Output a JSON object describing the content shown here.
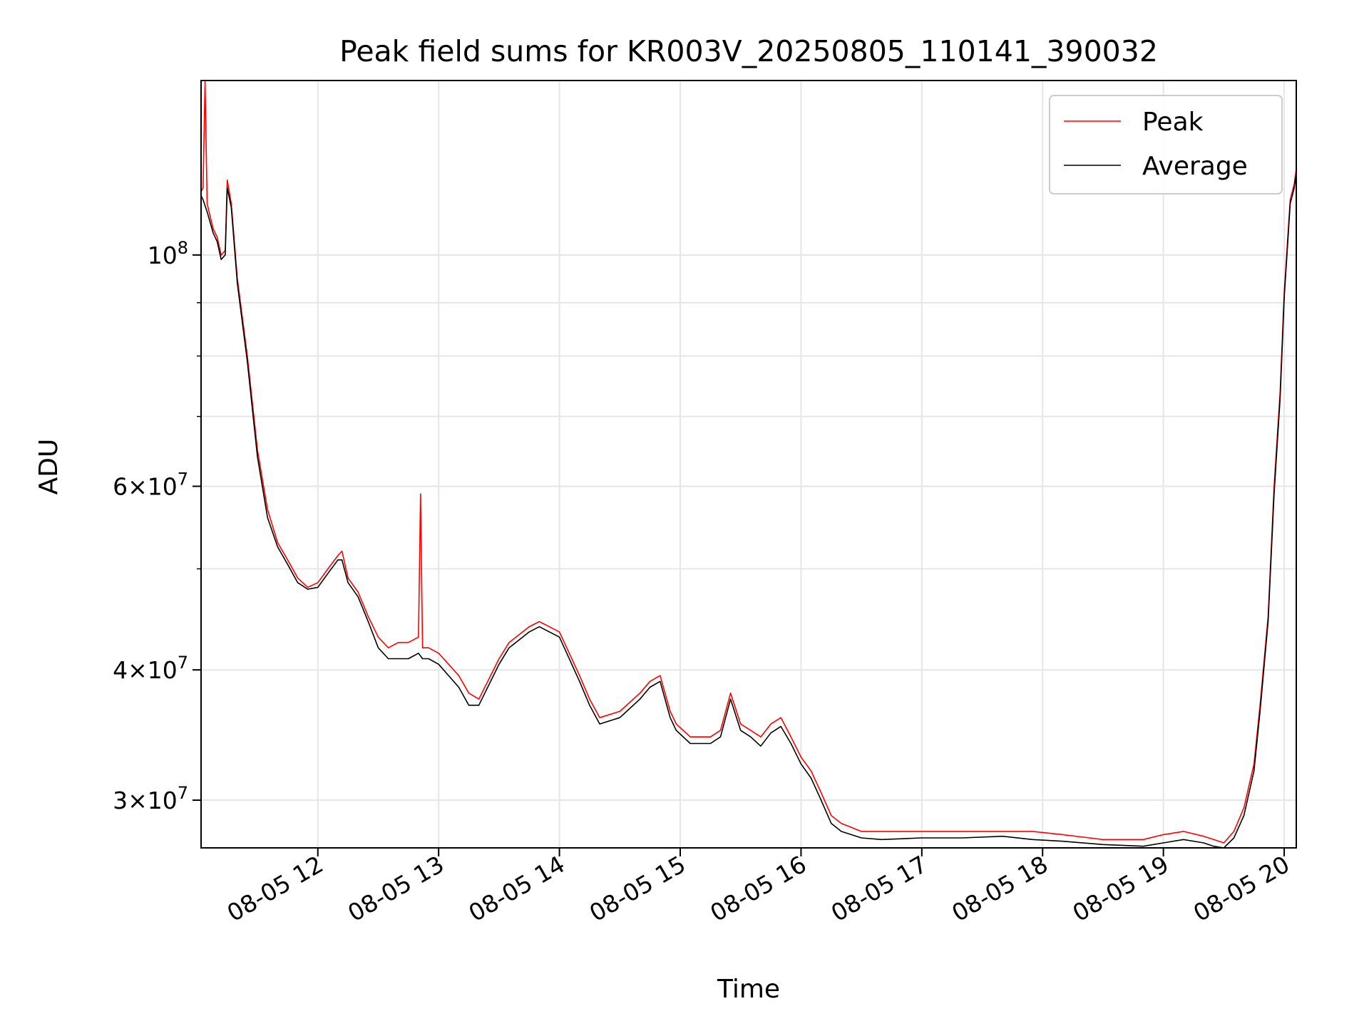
{
  "chart_data": {
    "type": "line",
    "title": "Peak field sums for KR003V_20250805_110141_390032",
    "xlabel": "Time",
    "ylabel": "ADU",
    "yscale": "log",
    "xlim": [
      "2025-08-05 11:02",
      "2025-08-05 20:06"
    ],
    "ylim": [
      27000000,
      147000000
    ],
    "grid": true,
    "legend_position": "top-right",
    "x_ticks": [
      "08-05 12",
      "08-05 13",
      "08-05 14",
      "08-05 15",
      "08-05 16",
      "08-05 17",
      "08-05 18",
      "08-05 19",
      "08-05 20"
    ],
    "y_ticks": [
      {
        "base": "10",
        "exp": "8",
        "value": 100000000
      },
      {
        "coef": "6",
        "base": "10",
        "exp": "7",
        "value": 60000000
      },
      {
        "coef": "4",
        "base": "10",
        "exp": "7",
        "value": 40000000
      },
      {
        "coef": "3",
        "base": "10",
        "exp": "7",
        "value": 30000000
      }
    ],
    "series": [
      {
        "name": "Peak",
        "color": "#ff0000",
        "x": [
          "2025-08-05 11:02",
          "2025-08-05 11:03",
          "2025-08-05 11:04",
          "2025-08-05 11:05",
          "2025-08-05 11:08",
          "2025-08-05 11:10",
          "2025-08-05 11:12",
          "2025-08-05 11:14",
          "2025-08-05 11:15",
          "2025-08-05 11:17",
          "2025-08-05 11:20",
          "2025-08-05 11:25",
          "2025-08-05 11:30",
          "2025-08-05 11:35",
          "2025-08-05 11:40",
          "2025-08-05 11:45",
          "2025-08-05 11:50",
          "2025-08-05 11:55",
          "2025-08-05 12:00",
          "2025-08-05 12:05",
          "2025-08-05 12:10",
          "2025-08-05 12:12",
          "2025-08-05 12:15",
          "2025-08-05 12:20",
          "2025-08-05 12:25",
          "2025-08-05 12:30",
          "2025-08-05 12:35",
          "2025-08-05 12:40",
          "2025-08-05 12:45",
          "2025-08-05 12:50",
          "2025-08-05 12:51",
          "2025-08-05 12:52",
          "2025-08-05 12:55",
          "2025-08-05 13:00",
          "2025-08-05 13:10",
          "2025-08-05 13:15",
          "2025-08-05 13:20",
          "2025-08-05 13:30",
          "2025-08-05 13:35",
          "2025-08-05 13:45",
          "2025-08-05 13:50",
          "2025-08-05 14:00",
          "2025-08-05 14:10",
          "2025-08-05 14:15",
          "2025-08-05 14:20",
          "2025-08-05 14:30",
          "2025-08-05 14:40",
          "2025-08-05 14:45",
          "2025-08-05 14:50",
          "2025-08-05 14:55",
          "2025-08-05 14:58",
          "2025-08-05 15:05",
          "2025-08-05 15:10",
          "2025-08-05 15:15",
          "2025-08-05 15:20",
          "2025-08-05 15:25",
          "2025-08-05 15:30",
          "2025-08-05 15:35",
          "2025-08-05 15:40",
          "2025-08-05 15:45",
          "2025-08-05 15:50",
          "2025-08-05 15:55",
          "2025-08-05 16:00",
          "2025-08-05 16:05",
          "2025-08-05 16:10",
          "2025-08-05 16:15",
          "2025-08-05 16:20",
          "2025-08-05 16:30",
          "2025-08-05 16:40",
          "2025-08-05 17:00",
          "2025-08-05 17:20",
          "2025-08-05 17:40",
          "2025-08-05 17:55",
          "2025-08-05 18:10",
          "2025-08-05 18:30",
          "2025-08-05 18:50",
          "2025-08-05 19:00",
          "2025-08-05 19:10",
          "2025-08-05 19:20",
          "2025-08-05 19:25",
          "2025-08-05 19:30",
          "2025-08-05 19:35",
          "2025-08-05 19:40",
          "2025-08-05 19:45",
          "2025-08-05 19:48",
          "2025-08-05 19:52",
          "2025-08-05 19:55",
          "2025-08-05 19:58",
          "2025-08-05 20:00",
          "2025-08-05 20:03",
          "2025-08-05 20:05",
          "2025-08-05 20:06"
        ],
        "y": [
          115000000,
          116000000,
          147000000,
          112000000,
          106000000,
          104000000,
          100000000,
          101000000,
          118000000,
          112000000,
          95000000,
          80000000,
          65000000,
          57000000,
          53000000,
          51000000,
          49000000,
          48000000,
          48500000,
          50000000,
          51500000,
          52000000,
          49000000,
          47500000,
          45000000,
          43000000,
          42000000,
          42500000,
          42500000,
          43000000,
          59000000,
          42000000,
          42000000,
          41500000,
          39500000,
          38000000,
          37500000,
          41000000,
          42500000,
          44000000,
          44500000,
          43500000,
          39500000,
          37500000,
          36000000,
          36500000,
          38000000,
          39000000,
          39500000,
          36500000,
          35500000,
          34500000,
          34500000,
          34500000,
          35000000,
          38000000,
          35500000,
          35000000,
          34500000,
          35500000,
          36000000,
          34500000,
          33000000,
          32000000,
          30500000,
          29000000,
          28500000,
          28000000,
          28000000,
          28000000,
          28000000,
          28000000,
          28000000,
          27800000,
          27500000,
          27500000,
          27800000,
          28000000,
          27700000,
          27500000,
          27300000,
          28000000,
          29500000,
          32500000,
          37000000,
          45000000,
          60000000,
          74000000,
          92000000,
          113000000,
          117000000,
          121000000
        ]
      },
      {
        "name": "Average",
        "color": "#000000",
        "x": [
          "2025-08-05 11:02",
          "2025-08-05 11:03",
          "2025-08-05 11:05",
          "2025-08-05 11:08",
          "2025-08-05 11:10",
          "2025-08-05 11:12",
          "2025-08-05 11:14",
          "2025-08-05 11:15",
          "2025-08-05 11:17",
          "2025-08-05 11:20",
          "2025-08-05 11:25",
          "2025-08-05 11:30",
          "2025-08-05 11:35",
          "2025-08-05 11:40",
          "2025-08-05 11:45",
          "2025-08-05 11:50",
          "2025-08-05 11:55",
          "2025-08-05 12:00",
          "2025-08-05 12:05",
          "2025-08-05 12:10",
          "2025-08-05 12:12",
          "2025-08-05 12:15",
          "2025-08-05 12:20",
          "2025-08-05 12:25",
          "2025-08-05 12:30",
          "2025-08-05 12:35",
          "2025-08-05 12:40",
          "2025-08-05 12:45",
          "2025-08-05 12:50",
          "2025-08-05 12:52",
          "2025-08-05 12:55",
          "2025-08-05 13:00",
          "2025-08-05 13:10",
          "2025-08-05 13:15",
          "2025-08-05 13:20",
          "2025-08-05 13:30",
          "2025-08-05 13:35",
          "2025-08-05 13:45",
          "2025-08-05 13:50",
          "2025-08-05 14:00",
          "2025-08-05 14:10",
          "2025-08-05 14:15",
          "2025-08-05 14:20",
          "2025-08-05 14:30",
          "2025-08-05 14:40",
          "2025-08-05 14:45",
          "2025-08-05 14:50",
          "2025-08-05 14:55",
          "2025-08-05 14:58",
          "2025-08-05 15:05",
          "2025-08-05 15:10",
          "2025-08-05 15:15",
          "2025-08-05 15:20",
          "2025-08-05 15:25",
          "2025-08-05 15:30",
          "2025-08-05 15:35",
          "2025-08-05 15:40",
          "2025-08-05 15:45",
          "2025-08-05 15:50",
          "2025-08-05 15:55",
          "2025-08-05 16:00",
          "2025-08-05 16:05",
          "2025-08-05 16:10",
          "2025-08-05 16:15",
          "2025-08-05 16:20",
          "2025-08-05 16:30",
          "2025-08-05 16:40",
          "2025-08-05 17:00",
          "2025-08-05 17:20",
          "2025-08-05 17:40",
          "2025-08-05 17:55",
          "2025-08-05 18:10",
          "2025-08-05 18:30",
          "2025-08-05 18:50",
          "2025-08-05 19:00",
          "2025-08-05 19:10",
          "2025-08-05 19:20",
          "2025-08-05 19:25",
          "2025-08-05 19:30",
          "2025-08-05 19:35",
          "2025-08-05 19:40",
          "2025-08-05 19:45",
          "2025-08-05 19:48",
          "2025-08-05 19:52",
          "2025-08-05 19:55",
          "2025-08-05 19:58",
          "2025-08-05 20:00",
          "2025-08-05 20:03",
          "2025-08-05 20:05",
          "2025-08-05 20:06"
        ],
        "y": [
          114000000,
          113000000,
          110000000,
          105000000,
          103000000,
          99000000,
          100000000,
          116000000,
          111000000,
          94000000,
          79000000,
          64000000,
          56000000,
          52500000,
          50500000,
          48500000,
          47800000,
          48000000,
          49500000,
          51000000,
          51000000,
          48500000,
          47000000,
          44500000,
          42000000,
          41000000,
          41000000,
          41000000,
          41500000,
          41000000,
          41000000,
          40500000,
          38500000,
          37000000,
          37000000,
          40500000,
          42000000,
          43500000,
          44000000,
          43000000,
          39000000,
          37000000,
          35500000,
          36000000,
          37500000,
          38500000,
          39000000,
          36000000,
          35000000,
          34000000,
          34000000,
          34000000,
          34500000,
          37500000,
          35000000,
          34500000,
          33800000,
          34800000,
          35300000,
          34000000,
          32500000,
          31500000,
          30000000,
          28500000,
          28000000,
          27600000,
          27500000,
          27600000,
          27600000,
          27700000,
          27500000,
          27400000,
          27200000,
          27100000,
          27300000,
          27500000,
          27300000,
          27100000,
          27000000,
          27600000,
          29000000,
          32000000,
          36500000,
          44500000,
          59000000,
          73000000,
          91000000,
          112000000,
          116000000,
          120000000
        ]
      }
    ]
  }
}
